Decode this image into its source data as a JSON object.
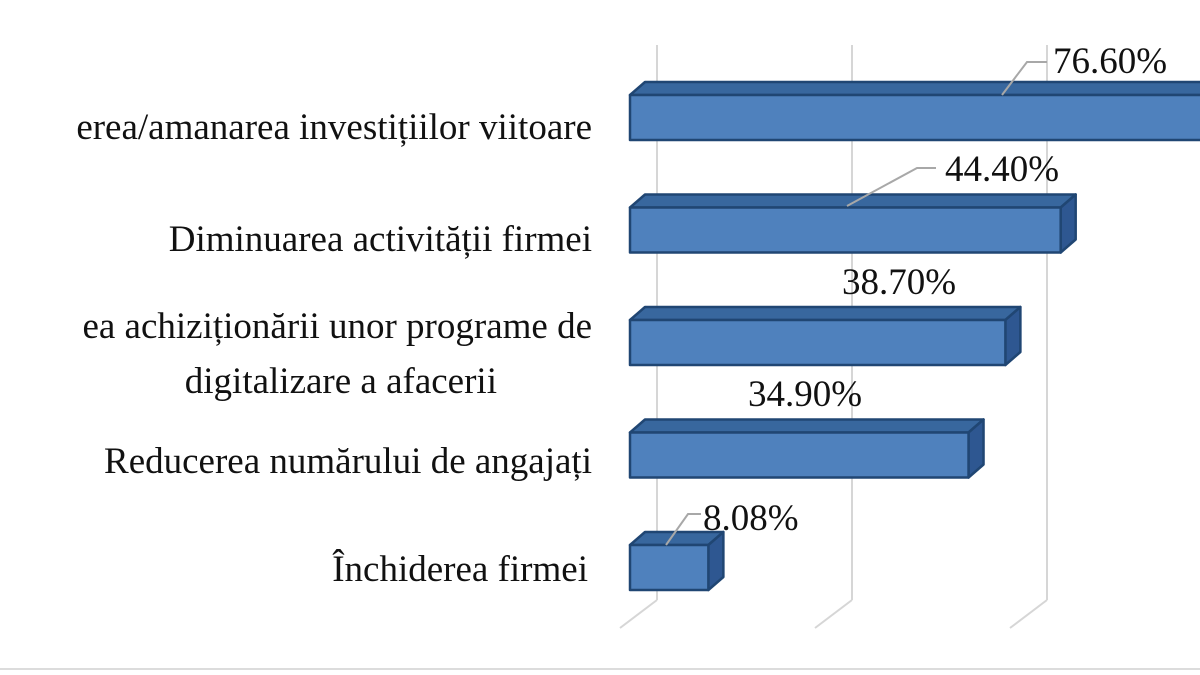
{
  "chart_data": {
    "type": "bar",
    "orientation": "horizontal",
    "style": "3d",
    "title": "",
    "legend": "none",
    "categories": [
      "erea/amanarea investițiilor viitoare",
      "Diminuarea activității firmei",
      "ea achiziționării unor programe de digitalizare a afacerii",
      "Reducerea numărului de angajați",
      "Închiderea firmei"
    ],
    "values": [
      76.6,
      44.4,
      38.7,
      34.9,
      8.08
    ],
    "value_labels": [
      "76.60%",
      "44.40%",
      "38.70%",
      "34.90%",
      "8.08%"
    ],
    "bar_color": "#4f81bd",
    "bar_top_color": "#38679e",
    "bar_side_color": "#2e5791",
    "bar_outline_color": "#204673",
    "gridline_color": "#d6d6d6",
    "leader_line_color": "#a8a8a8"
  },
  "display": {
    "category_lines": [
      {
        "text": "erea/amanarea investițiilor viitoare"
      },
      {
        "text": "Diminuarea activității firmei"
      },
      {
        "text": "ea achiziționării unor programe de"
      },
      {
        "text": "digitalizare a afacerii"
      },
      {
        "text": "Reducerea numărului de angajați"
      },
      {
        "text": "Închiderea firmei"
      }
    ]
  }
}
